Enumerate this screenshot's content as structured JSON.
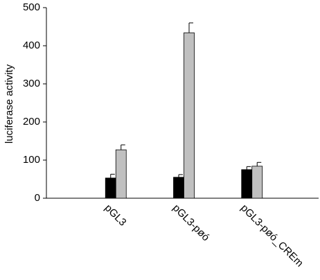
{
  "chart_data": {
    "type": "bar",
    "y_label": "luciferase activity",
    "categories": [
      "pGL3",
      "pGL3-pøó",
      "pGL3-pøó_CREm"
    ],
    "series": [
      {
        "color": "#000000",
        "values": [
          53,
          55,
          75
        ],
        "errors": [
          10,
          7,
          8
        ]
      },
      {
        "color": "#c0c0c0",
        "values": [
          127,
          434,
          84
        ],
        "errors": [
          13,
          26,
          10
        ]
      }
    ],
    "ylim": [
      0,
      500
    ],
    "yticks": [
      0,
      100,
      200,
      300,
      400,
      500
    ],
    "grid": false
  }
}
